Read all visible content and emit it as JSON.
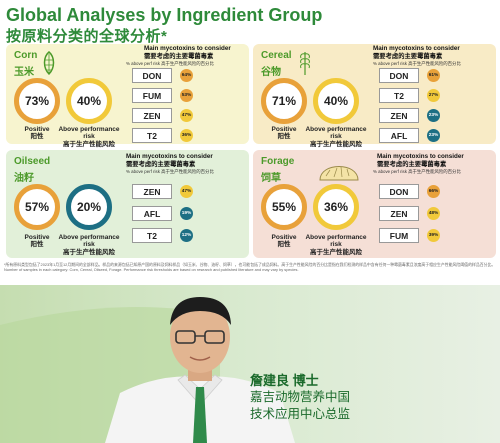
{
  "title": {
    "en": "Global Analyses by Ingredient Group",
    "cn": "按原料分类的全球分析*"
  },
  "myco_heading": {
    "en": "Main mycotoxins to consider",
    "cn": "需要考虑的主要霉菌毒素",
    "sub": "% above perf risk 高于生产性能风险的百分比"
  },
  "labels": {
    "positive_en": "Positive",
    "positive_cn": "阳性",
    "above_en": "Above",
    "above_en2": "performance risk",
    "above_cn": "高于生产性能风险"
  },
  "panels": {
    "corn": {
      "name": "Corn",
      "name_cn": "玉米",
      "positive": "73%",
      "above": "40%",
      "mycotoxins": [
        {
          "name": "DON",
          "pct": "64%"
        },
        {
          "name": "FUM",
          "pct": "53%"
        },
        {
          "name": "ZEN",
          "pct": "47%"
        },
        {
          "name": "T2",
          "pct": "36%"
        }
      ]
    },
    "cereal": {
      "name": "Cereal",
      "name_cn": "谷物",
      "positive": "71%",
      "above": "40%",
      "mycotoxins": [
        {
          "name": "DON",
          "pct": "61%"
        },
        {
          "name": "T2",
          "pct": "27%"
        },
        {
          "name": "ZEN",
          "pct": "23%"
        },
        {
          "name": "AFL",
          "pct": "23%"
        }
      ]
    },
    "oilseed": {
      "name": "Oilseed",
      "name_cn": "油籽",
      "positive": "57%",
      "above": "20%",
      "mycotoxins": [
        {
          "name": "ZEN",
          "pct": "47%"
        },
        {
          "name": "AFL",
          "pct": "19%"
        },
        {
          "name": "T2",
          "pct": "12%"
        }
      ]
    },
    "forage": {
      "name": "Forage",
      "name_cn": "饲草",
      "positive": "55%",
      "above": "36%",
      "mycotoxins": [
        {
          "name": "DON",
          "pct": "66%"
        },
        {
          "name": "ZEN",
          "pct": "48%"
        },
        {
          "name": "FUM",
          "pct": "39%"
        }
      ]
    }
  },
  "footnote": "*所有原料类型包括了2023年1月至12月期间的全部样品。样品的来源包括已知原产国的原料及饲料样品（如玉米、谷物、油籽、饲草），也可能包括了成品饲料。高于生产性能风险的百分比是指在我们检测的样品中含有任何一种霉菌毒素且浓度高于相应生产性能风险阈值的样品百分比。Number of samples in each category: Corn, Cereal, Oilseed, Forage. Performance risk thresholds are based on research and published literature and may vary by species.",
  "colors": {
    "orange": "#e8a13a",
    "yellow": "#f1c93a",
    "teal": "#1d6f84",
    "green": "#2e8a3a"
  },
  "person": {
    "name": "詹建良 博士",
    "title1": "嘉吉动物营养中国",
    "title2": "技术应用中心总监"
  }
}
